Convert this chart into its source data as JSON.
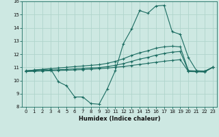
{
  "xlabel": "Humidex (Indice chaleur)",
  "bg_color": "#cde8e2",
  "grid_color": "#b0d4cc",
  "line_color": "#1a6b60",
  "xlim": [
    -0.5,
    23.5
  ],
  "ylim": [
    8,
    16
  ],
  "xticks": [
    0,
    1,
    2,
    3,
    4,
    5,
    6,
    7,
    8,
    9,
    10,
    11,
    12,
    13,
    14,
    15,
    16,
    17,
    18,
    19,
    20,
    21,
    22,
    23
  ],
  "yticks": [
    8,
    9,
    10,
    11,
    12,
    13,
    14,
    15,
    16
  ],
  "line1_x": [
    0,
    1,
    2,
    3,
    4,
    5,
    6,
    7,
    8,
    9,
    10,
    11,
    12,
    13,
    14,
    15,
    16,
    17,
    18,
    19,
    20,
    21,
    22,
    23
  ],
  "line1_y": [
    10.7,
    10.8,
    10.85,
    10.9,
    9.9,
    9.6,
    8.75,
    8.75,
    8.25,
    8.2,
    9.35,
    10.75,
    12.8,
    13.9,
    15.3,
    15.1,
    15.65,
    15.7,
    13.7,
    13.5,
    11.75,
    10.75,
    10.7,
    11.0
  ],
  "line2_x": [
    0,
    1,
    2,
    3,
    4,
    5,
    6,
    7,
    8,
    9,
    10,
    11,
    12,
    13,
    14,
    15,
    16,
    17,
    18,
    19,
    20,
    21,
    22,
    23
  ],
  "line2_y": [
    10.75,
    10.78,
    10.82,
    10.88,
    10.95,
    11.0,
    11.05,
    11.1,
    11.15,
    11.2,
    11.3,
    11.45,
    11.65,
    11.9,
    12.1,
    12.25,
    12.45,
    12.55,
    12.6,
    12.55,
    10.75,
    10.72,
    10.7,
    11.0
  ],
  "line3_x": [
    0,
    1,
    2,
    3,
    4,
    5,
    6,
    7,
    8,
    9,
    10,
    11,
    12,
    13,
    14,
    15,
    16,
    17,
    18,
    19,
    20,
    21,
    22,
    23
  ],
  "line3_y": [
    10.7,
    10.72,
    10.75,
    10.78,
    10.82,
    10.85,
    10.88,
    10.92,
    10.95,
    10.98,
    11.05,
    11.15,
    11.28,
    11.45,
    11.62,
    11.75,
    11.92,
    12.05,
    12.15,
    12.2,
    10.72,
    10.7,
    10.68,
    11.0
  ],
  "line4_x": [
    0,
    1,
    2,
    3,
    4,
    5,
    6,
    7,
    8,
    9,
    10,
    11,
    12,
    13,
    14,
    15,
    16,
    17,
    18,
    19,
    20,
    21,
    22,
    23
  ],
  "line4_y": [
    10.68,
    10.7,
    10.72,
    10.74,
    10.76,
    10.78,
    10.8,
    10.83,
    10.86,
    10.9,
    10.94,
    11.0,
    11.06,
    11.14,
    11.22,
    11.3,
    11.38,
    11.46,
    11.52,
    11.58,
    10.68,
    10.66,
    10.64,
    11.0
  ]
}
